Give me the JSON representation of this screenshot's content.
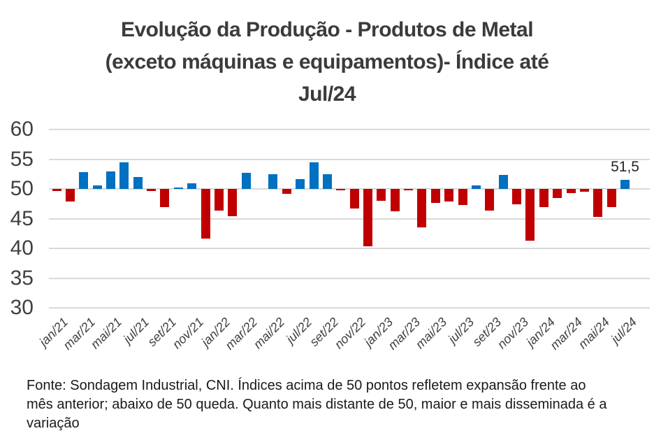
{
  "title": {
    "lines": [
      "Evolução da Produção - Produtos de Metal",
      "(exceto máquinas e equipamentos)- Índice até",
      "Jul/24"
    ]
  },
  "footer": {
    "lines": [
      "Fonte: Sondagem Industrial, CNI. Índices acima de 50 pontos refletem expansão frente ao",
      "mês anterior; abaixo de 50 queda. Quanto mais distante de 50, maior e mais disseminada é a",
      "variação"
    ]
  },
  "chart_data": {
    "type": "bar",
    "title": "Evolução da Produção - Produtos de Metal (exceto máquinas e equipamentos)- Índice até Jul/24",
    "categories": [
      "jan/21",
      "fev/21",
      "mar/21",
      "abr/21",
      "mai/21",
      "jun/21",
      "jul/21",
      "ago/21",
      "set/21",
      "out/21",
      "nov/21",
      "dez/21",
      "jan/22",
      "fev/22",
      "mar/22",
      "abr/22",
      "mai/22",
      "jun/22",
      "jul/22",
      "ago/22",
      "set/22",
      "out/22",
      "nov/22",
      "dez/22",
      "jan/23",
      "fev/23",
      "mar/23",
      "abr/23",
      "mai/23",
      "jun/23",
      "jul/23",
      "ago/23",
      "set/23",
      "out/23",
      "nov/23",
      "dez/23",
      "jan/24",
      "fev/24",
      "mar/24",
      "abr/24",
      "mai/24",
      "jun/24",
      "jul/24"
    ],
    "values": [
      49.6,
      47.9,
      52.8,
      50.6,
      53.0,
      54.5,
      52.0,
      49.7,
      47.0,
      50.2,
      50.9,
      41.6,
      46.4,
      45.4,
      52.7,
      50.0,
      52.5,
      49.2,
      51.6,
      54.5,
      52.5,
      49.8,
      46.7,
      40.3,
      48.0,
      46.2,
      49.8,
      43.5,
      47.7,
      47.9,
      47.3,
      50.6,
      46.4,
      52.4,
      47.4,
      41.3,
      46.9,
      48.5,
      49.3,
      49.5,
      45.3,
      47.0,
      51.5
    ],
    "baseline": 50,
    "ylim": [
      30,
      60
    ],
    "yticks": [
      60,
      55,
      50,
      45,
      40,
      35,
      30
    ],
    "xtick_labels": [
      "jan/21",
      "mar/21",
      "mai/21",
      "jul/21",
      "set/21",
      "nov/21",
      "jan/22",
      "mar/22",
      "mai/22",
      "jul/22",
      "set/22",
      "nov/22",
      "jan/23",
      "mar/23",
      "mai/23",
      "jul/23",
      "set/23",
      "nov/23",
      "jan/24",
      "mar/24",
      "mai/24",
      "jul/24"
    ],
    "annotation": {
      "text": "51,5",
      "category": "jul/24"
    },
    "grid": true,
    "legend": false,
    "colors": {
      "above_baseline": "#0070C0",
      "below_baseline": "#C00000",
      "gridline": "#D9D9D9",
      "axis_text": "#404040",
      "title_text": "#3B3B3B",
      "annotation_text": "#262626"
    }
  }
}
